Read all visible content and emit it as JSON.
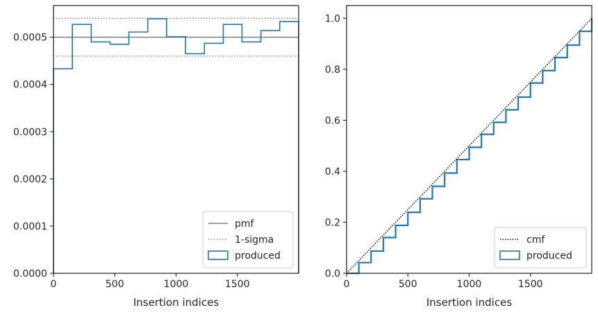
{
  "chart_data": [
    {
      "type": "line",
      "xlabel": "Insertion indices",
      "ylabel": "",
      "xlim": [
        0,
        2000
      ],
      "ylim": [
        0,
        0.000567
      ],
      "xticks": [
        0,
        500,
        1000,
        1500
      ],
      "xtick_labels": [
        "0",
        "500",
        "1000",
        "1500"
      ],
      "yticks": [
        0,
        0.0001,
        0.0002,
        0.0003,
        0.0004,
        0.0005
      ],
      "ytick_labels": [
        "0.0000",
        "0.0001",
        "0.0002",
        "0.0003",
        "0.0004",
        "0.0005"
      ],
      "grid": false,
      "legend_placement": "lower-right",
      "legend": [
        "pmf",
        "1-sigma",
        "produced"
      ],
      "pmf": 0.0005,
      "sigma_band": [
        0.00046,
        0.00054
      ],
      "series": [
        {
          "name": "produced",
          "style": "step",
          "bin_edges": [
            0,
            154,
            308,
            462,
            615,
            769,
            923,
            1077,
            1231,
            1385,
            1538,
            1692,
            1846,
            2000
          ],
          "values": [
            0.000433,
            0.000527,
            0.00049,
            0.000485,
            0.000511,
            0.000539,
            0.000501,
            0.000465,
            0.000487,
            0.000527,
            0.00049,
            0.000514,
            0.000533
          ]
        }
      ],
      "colors": {
        "pmf": "#808080",
        "sigma": "#808080",
        "produced": "#1f77b4"
      }
    },
    {
      "type": "line",
      "xlabel": "Insertion indices",
      "ylabel": "",
      "xlim": [
        0,
        2000
      ],
      "ylim": [
        0,
        1.05
      ],
      "xticks": [
        0,
        500,
        1000,
        1500
      ],
      "xtick_labels": [
        "0",
        "500",
        "1000",
        "1500"
      ],
      "yticks": [
        0,
        0.2,
        0.4,
        0.6,
        0.8,
        1.0
      ],
      "ytick_labels": [
        "0.0",
        "0.2",
        "0.4",
        "0.6",
        "0.8",
        "1.0"
      ],
      "grid": false,
      "legend_placement": "lower-right",
      "legend": [
        "cmf",
        "produced"
      ],
      "series": [
        {
          "name": "cmf",
          "style": "dotted",
          "x": [
            0,
            2000
          ],
          "y": [
            0,
            1.0
          ]
        },
        {
          "name": "produced",
          "style": "step",
          "x": [
            0,
            100,
            200,
            300,
            400,
            500,
            600,
            700,
            800,
            900,
            1000,
            1100,
            1200,
            1300,
            1400,
            1500,
            1600,
            1700,
            1800,
            1900,
            2000
          ],
          "y": [
            0,
            0.042,
            0.087,
            0.14,
            0.188,
            0.239,
            0.292,
            0.341,
            0.393,
            0.446,
            0.494,
            0.545,
            0.592,
            0.641,
            0.691,
            0.746,
            0.795,
            0.846,
            0.895,
            0.949,
            1.0
          ]
        }
      ],
      "colors": {
        "cmf": "#000000",
        "produced": "#1f77b4"
      }
    }
  ]
}
